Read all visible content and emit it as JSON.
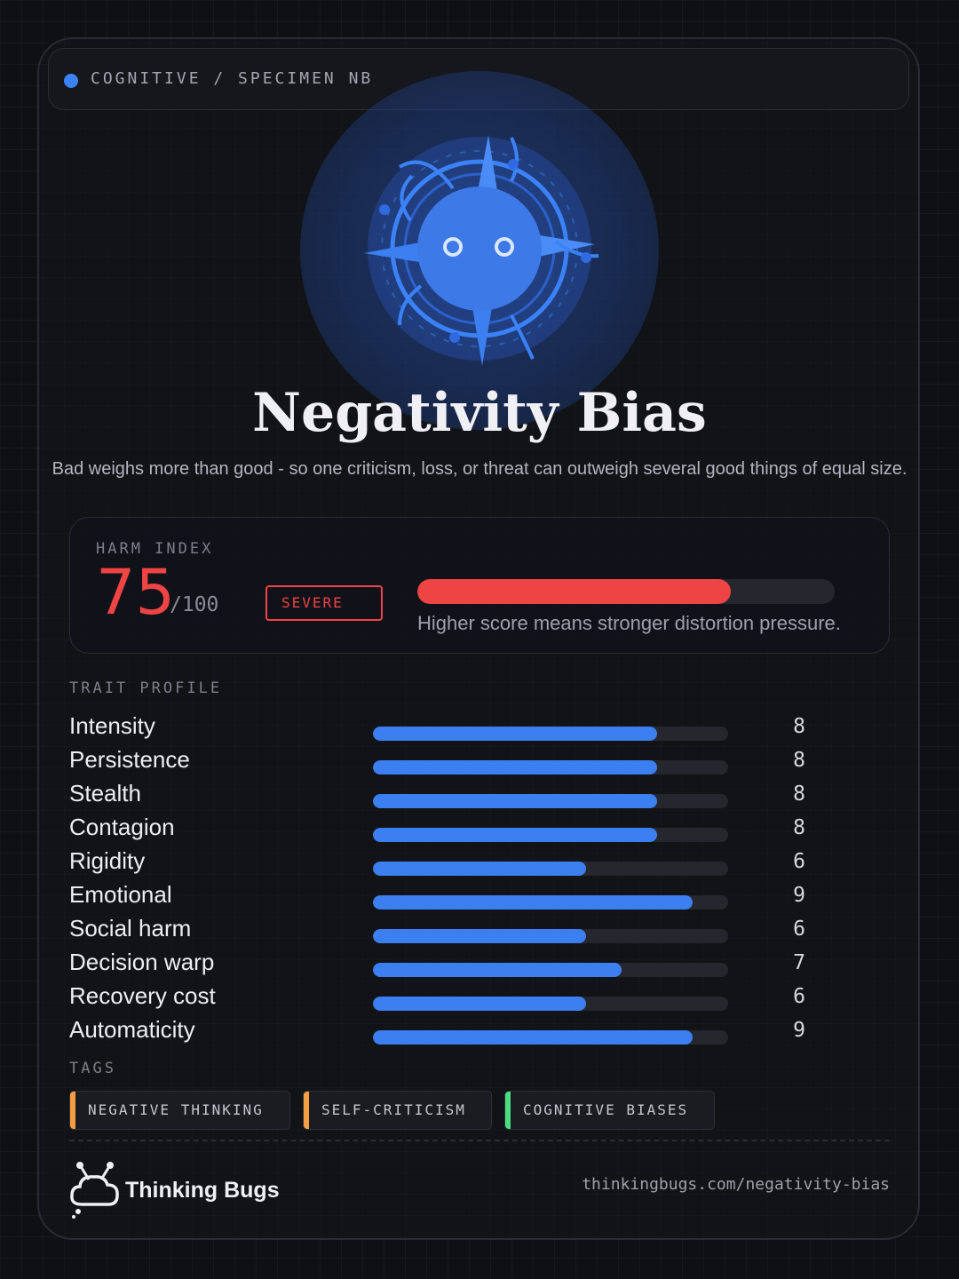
{
  "header": {
    "category_label": "COGNITIVE / SPECIMEN NB"
  },
  "mascot": {
    "icon": "compass-bug-icon",
    "accent_color": "#3b82f6"
  },
  "title": "Negativity Bias",
  "subtitle": "Bad weighs more than good - so one criticism, loss, or threat can outweigh several good things of equal size.",
  "harm_index": {
    "label": "HARM INDEX",
    "score": "75",
    "max": "/100",
    "fraction": 0.75,
    "severity": "SEVERE",
    "note": "Higher score means stronger distortion pressure.",
    "color": "#ef4444"
  },
  "trait_profile": {
    "label": "TRAIT PROFILE",
    "max_value": 10,
    "traits": [
      {
        "name": "Intensity",
        "value": "8"
      },
      {
        "name": "Persistence",
        "value": "8"
      },
      {
        "name": "Stealth",
        "value": "8"
      },
      {
        "name": "Contagion",
        "value": "8"
      },
      {
        "name": "Rigidity",
        "value": "6"
      },
      {
        "name": "Emotional",
        "value": "9"
      },
      {
        "name": "Social harm",
        "value": "6"
      },
      {
        "name": "Decision warp",
        "value": "7"
      },
      {
        "name": "Recovery cost",
        "value": "6"
      },
      {
        "name": "Automaticity",
        "value": "9"
      }
    ],
    "bar_color": "#3b7ff0"
  },
  "tags": {
    "label": "TAGS",
    "items": [
      {
        "text": "NEGATIVE THINKING",
        "accent": "#f59e42"
      },
      {
        "text": "SELF-CRITICISM",
        "accent": "#f59e42"
      },
      {
        "text": "COGNITIVE BIASES",
        "accent": "#4ade80"
      }
    ]
  },
  "footer": {
    "brand_icon": "thinking-bugs-logo-icon",
    "brand_name": "Thinking Bugs",
    "url": "thinkingbugs.com/negativity-bias"
  }
}
